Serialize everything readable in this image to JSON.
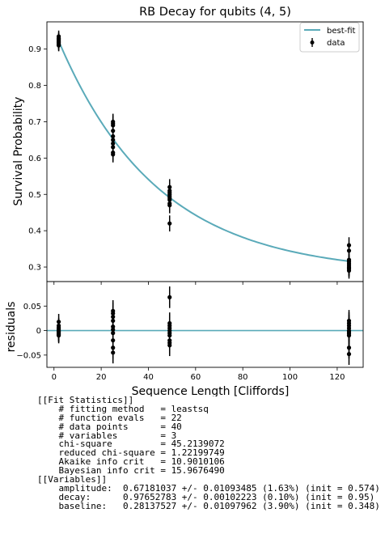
{
  "chart_data": [
    {
      "type": "scatter",
      "title": "RB Decay for qubits (4, 5)",
      "xlabel": "",
      "ylabel": "Survival Probability",
      "xlim": [
        -3,
        131
      ],
      "ylim": [
        0.26,
        0.975
      ],
      "xticks": [
        0,
        20,
        40,
        60,
        80,
        100,
        120
      ],
      "yticks": [
        0.3,
        0.4,
        0.5,
        0.6,
        0.7,
        0.8,
        0.9
      ],
      "ytick_labels": [
        "0.3",
        "0.4",
        "0.5",
        "0.6",
        "0.7",
        "0.8",
        "0.9"
      ],
      "grid": false,
      "legend": {
        "placement": "top-right",
        "fit_label": "best-fit",
        "data_label": "data"
      },
      "fit": {
        "name": "best-fit",
        "color": "#5aaab9",
        "amplitude": 0.67181037,
        "decay": 0.97652783,
        "baseline": 0.28137527
      },
      "data": {
        "name": "data",
        "color": "#000000",
        "groups": [
          {
            "x": 2,
            "yerr": 0.016,
            "y": [
              0.935,
              0.93,
              0.928,
              0.925,
              0.922,
              0.92,
              0.918,
              0.915,
              0.912,
              0.91
            ]
          },
          {
            "x": 25,
            "yerr": 0.022,
            "y": [
              0.7,
              0.695,
              0.69,
              0.675,
              0.66,
              0.65,
              0.64,
              0.63,
              0.615,
              0.61
            ]
          },
          {
            "x": 49,
            "yerr": 0.022,
            "y": [
              0.52,
              0.51,
              0.505,
              0.5,
              0.495,
              0.49,
              0.485,
              0.475,
              0.47,
              0.42
            ]
          },
          {
            "x": 125,
            "yerr": 0.022,
            "y": [
              0.36,
              0.345,
              0.32,
              0.315,
              0.31,
              0.305,
              0.3,
              0.298,
              0.295,
              0.29
            ]
          }
        ]
      }
    },
    {
      "type": "scatter",
      "title": "",
      "xlabel": "Sequence Length [Cliffords]",
      "ylabel": "residuals",
      "xlim": [
        -3,
        131
      ],
      "ylim": [
        -0.075,
        0.1
      ],
      "xticks": [
        0,
        20,
        40,
        60,
        80,
        100,
        120
      ],
      "yticks": [
        -0.05,
        0,
        0.05
      ],
      "ytick_labels": [
        "−0.05",
        "0",
        "0.05"
      ],
      "grid": false,
      "zero_line_color": "#5aaab9",
      "data": {
        "color": "#000000",
        "groups": [
          {
            "x": 2,
            "yerr": 0.016,
            "y": [
              0.018,
              0.01,
              0.006,
              0.003,
              0.0,
              -0.002,
              -0.004,
              -0.006,
              -0.008,
              -0.01
            ]
          },
          {
            "x": 25,
            "yerr": 0.022,
            "y": [
              0.04,
              0.035,
              0.028,
              0.02,
              0.008,
              0.002,
              -0.005,
              -0.02,
              -0.035,
              -0.045
            ]
          },
          {
            "x": 49,
            "yerr": 0.022,
            "y": [
              0.068,
              0.015,
              0.01,
              0.005,
              0.0,
              -0.005,
              -0.01,
              -0.02,
              -0.025,
              -0.03
            ]
          },
          {
            "x": 125,
            "yerr": 0.022,
            "y": [
              0.02,
              0.015,
              0.01,
              0.005,
              0.0,
              -0.003,
              -0.006,
              -0.01,
              -0.035,
              -0.048
            ]
          }
        ]
      }
    }
  ],
  "report": {
    "lines": [
      "[[Fit Statistics]]",
      "    # fitting method   = leastsq",
      "    # function evals   = 22",
      "    # data points      = 40",
      "    # variables        = 3",
      "    chi-square         = 45.2139072",
      "    reduced chi-square = 1.22199749",
      "    Akaike info crit   = 10.9010106",
      "    Bayesian info crit = 15.9676490",
      "[[Variables]]",
      "    amplitude:  0.67181037 +/- 0.01093485 (1.63%) (init = 0.574)",
      "    decay:      0.97652783 +/- 0.00102223 (0.10%) (init = 0.95)",
      "    baseline:   0.28137527 +/- 0.01097962 (3.90%) (init = 0.348)"
    ]
  }
}
